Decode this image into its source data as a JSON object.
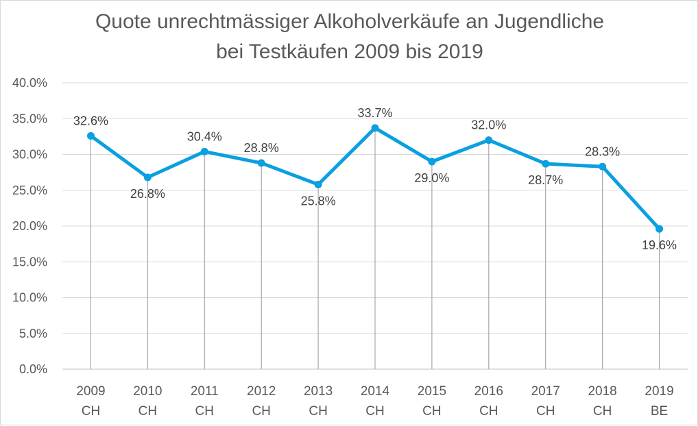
{
  "chart_data": {
    "type": "line",
    "title_lines": [
      "Quote unrechtmässiger Alkoholverkäufe an Jugendliche",
      "bei Testkäufen 2009 bis 2019"
    ],
    "categories": [
      [
        "2009",
        "CH"
      ],
      [
        "2010",
        "CH"
      ],
      [
        "2011",
        "CH"
      ],
      [
        "2012",
        "CH"
      ],
      [
        "2013",
        "CH"
      ],
      [
        "2014",
        "CH"
      ],
      [
        "2015",
        "CH"
      ],
      [
        "2016",
        "CH"
      ],
      [
        "2017",
        "CH"
      ],
      [
        "2018",
        "CH"
      ],
      [
        "2019",
        "BE"
      ]
    ],
    "values": [
      32.6,
      26.8,
      30.4,
      28.8,
      25.8,
      33.7,
      29.0,
      32.0,
      28.7,
      28.3,
      19.6
    ],
    "data_labels": [
      "32.6%",
      "26.8%",
      "30.4%",
      "28.8%",
      "25.8%",
      "33.7%",
      "29.0%",
      "32.0%",
      "28.7%",
      "28.3%",
      "19.6%"
    ],
    "label_position": [
      "above",
      "below",
      "above",
      "above",
      "below",
      "above",
      "below",
      "above",
      "below",
      "above",
      "below"
    ],
    "ylim": [
      0,
      40
    ],
    "yticks": [
      "0.0%",
      "5.0%",
      "10.0%",
      "15.0%",
      "20.0%",
      "25.0%",
      "30.0%",
      "35.0%",
      "40.0%"
    ],
    "grid": true,
    "drop_lines": true,
    "legend": "none",
    "color": "#0aa0e0"
  }
}
